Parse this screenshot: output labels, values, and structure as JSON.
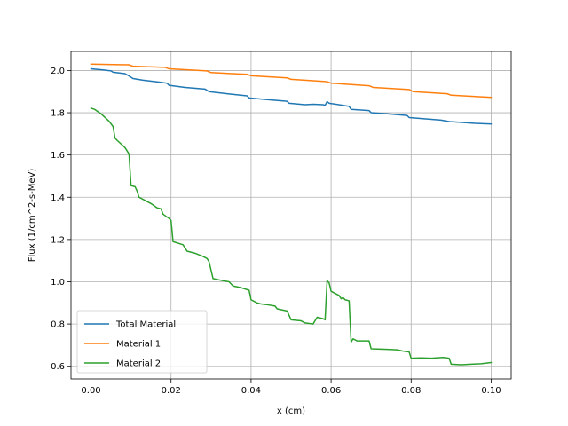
{
  "chart_data": {
    "type": "line",
    "title": "",
    "xlabel": "x (cm)",
    "ylabel": "Flux (1/cm^2-s-MeV)",
    "xlim": [
      -0.005,
      0.105
    ],
    "ylim": [
      0.54,
      2.09
    ],
    "grid": true,
    "legend_position": "lower-left",
    "x_ticks": [
      0.0,
      0.02,
      0.04,
      0.06,
      0.08,
      0.1
    ],
    "x_tick_labels": [
      "0.00",
      "0.02",
      "0.04",
      "0.06",
      "0.08",
      "0.10"
    ],
    "y_ticks": [
      0.6,
      0.8,
      1.0,
      1.2,
      1.4,
      1.6,
      1.8,
      2.0
    ],
    "y_tick_labels": [
      "0.6",
      "0.8",
      "1.0",
      "1.2",
      "1.4",
      "1.6",
      "1.8",
      "2.0"
    ],
    "series": [
      {
        "name": "Total Material",
        "color": "#1f77b4",
        "points": [
          [
            0.0,
            2.008
          ],
          [
            0.003,
            2.003
          ],
          [
            0.005,
            1.998
          ],
          [
            0.0055,
            1.992
          ],
          [
            0.0085,
            1.985
          ],
          [
            0.0095,
            1.974
          ],
          [
            0.0105,
            1.962
          ],
          [
            0.013,
            1.954
          ],
          [
            0.017,
            1.945
          ],
          [
            0.019,
            1.94
          ],
          [
            0.0195,
            1.93
          ],
          [
            0.0235,
            1.92
          ],
          [
            0.0285,
            1.912
          ],
          [
            0.0295,
            1.9
          ],
          [
            0.034,
            1.89
          ],
          [
            0.039,
            1.88
          ],
          [
            0.0395,
            1.87
          ],
          [
            0.044,
            1.862
          ],
          [
            0.049,
            1.854
          ],
          [
            0.0495,
            1.845
          ],
          [
            0.0535,
            1.838
          ],
          [
            0.0555,
            1.84
          ],
          [
            0.058,
            1.838
          ],
          [
            0.0585,
            1.835
          ],
          [
            0.059,
            1.853
          ],
          [
            0.0595,
            1.845
          ],
          [
            0.063,
            1.835
          ],
          [
            0.0645,
            1.83
          ],
          [
            0.065,
            1.816
          ],
          [
            0.0695,
            1.81
          ],
          [
            0.07,
            1.8
          ],
          [
            0.074,
            1.795
          ],
          [
            0.079,
            1.787
          ],
          [
            0.0795,
            1.777
          ],
          [
            0.084,
            1.77
          ],
          [
            0.0875,
            1.765
          ],
          [
            0.0895,
            1.758
          ],
          [
            0.092,
            1.755
          ],
          [
            0.096,
            1.75
          ],
          [
            0.1,
            1.747
          ]
        ]
      },
      {
        "name": "Material 1",
        "color": "#ff7f0e",
        "points": [
          [
            0.0,
            2.03
          ],
          [
            0.0095,
            2.027
          ],
          [
            0.0105,
            2.02
          ],
          [
            0.0185,
            2.015
          ],
          [
            0.0195,
            2.008
          ],
          [
            0.029,
            1.998
          ],
          [
            0.03,
            1.99
          ],
          [
            0.039,
            1.982
          ],
          [
            0.04,
            1.975
          ],
          [
            0.049,
            1.965
          ],
          [
            0.05,
            1.958
          ],
          [
            0.059,
            1.947
          ],
          [
            0.06,
            1.94
          ],
          [
            0.0695,
            1.928
          ],
          [
            0.0705,
            1.92
          ],
          [
            0.0795,
            1.91
          ],
          [
            0.0805,
            1.9
          ],
          [
            0.089,
            1.89
          ],
          [
            0.09,
            1.883
          ],
          [
            0.1,
            1.873
          ]
        ]
      },
      {
        "name": "Material 2",
        "color": "#2ca02c",
        "points": [
          [
            0.0,
            1.822
          ],
          [
            0.001,
            1.815
          ],
          [
            0.0025,
            1.795
          ],
          [
            0.0045,
            1.76
          ],
          [
            0.0055,
            1.735
          ],
          [
            0.006,
            1.68
          ],
          [
            0.0065,
            1.67
          ],
          [
            0.0085,
            1.635
          ],
          [
            0.0095,
            1.605
          ],
          [
            0.01,
            1.455
          ],
          [
            0.011,
            1.45
          ],
          [
            0.0115,
            1.43
          ],
          [
            0.012,
            1.4
          ],
          [
            0.0135,
            1.385
          ],
          [
            0.015,
            1.37
          ],
          [
            0.0165,
            1.35
          ],
          [
            0.0175,
            1.345
          ],
          [
            0.018,
            1.32
          ],
          [
            0.0195,
            1.3
          ],
          [
            0.02,
            1.29
          ],
          [
            0.0205,
            1.19
          ],
          [
            0.023,
            1.175
          ],
          [
            0.024,
            1.145
          ],
          [
            0.026,
            1.135
          ],
          [
            0.028,
            1.12
          ],
          [
            0.029,
            1.11
          ],
          [
            0.0295,
            1.095
          ],
          [
            0.0305,
            1.015
          ],
          [
            0.033,
            1.005
          ],
          [
            0.0345,
            1.0
          ],
          [
            0.0355,
            0.98
          ],
          [
            0.0375,
            0.972
          ],
          [
            0.0395,
            0.96
          ],
          [
            0.04,
            0.915
          ],
          [
            0.0415,
            0.9
          ],
          [
            0.0425,
            0.895
          ],
          [
            0.0445,
            0.89
          ],
          [
            0.046,
            0.885
          ],
          [
            0.0465,
            0.872
          ],
          [
            0.049,
            0.862
          ],
          [
            0.05,
            0.82
          ],
          [
            0.0525,
            0.815
          ],
          [
            0.0535,
            0.805
          ],
          [
            0.0555,
            0.8
          ],
          [
            0.0565,
            0.832
          ],
          [
            0.058,
            0.825
          ],
          [
            0.0585,
            0.82
          ],
          [
            0.059,
            1.005
          ],
          [
            0.0595,
            0.995
          ],
          [
            0.06,
            0.955
          ],
          [
            0.061,
            0.945
          ],
          [
            0.062,
            0.935
          ],
          [
            0.0625,
            0.92
          ],
          [
            0.063,
            0.925
          ],
          [
            0.0635,
            0.915
          ],
          [
            0.0645,
            0.91
          ],
          [
            0.065,
            0.715
          ],
          [
            0.0655,
            0.73
          ],
          [
            0.0665,
            0.72
          ],
          [
            0.0695,
            0.72
          ],
          [
            0.07,
            0.683
          ],
          [
            0.074,
            0.68
          ],
          [
            0.0765,
            0.678
          ],
          [
            0.078,
            0.672
          ],
          [
            0.0795,
            0.668
          ],
          [
            0.08,
            0.638
          ],
          [
            0.0825,
            0.64
          ],
          [
            0.085,
            0.638
          ],
          [
            0.088,
            0.642
          ],
          [
            0.0895,
            0.638
          ],
          [
            0.09,
            0.61
          ],
          [
            0.0925,
            0.607
          ],
          [
            0.095,
            0.61
          ],
          [
            0.0975,
            0.612
          ],
          [
            0.1,
            0.618
          ]
        ]
      }
    ]
  }
}
